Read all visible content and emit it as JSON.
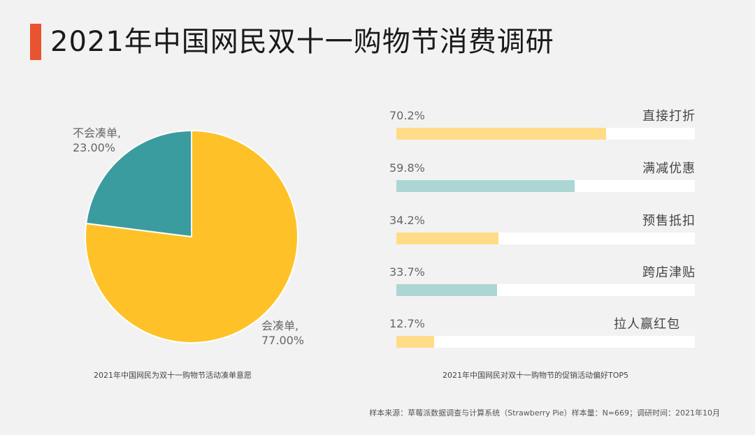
{
  "title": "2021年中国网民双十一购物节消费调研",
  "chart_data": [
    {
      "type": "pie",
      "caption": "2021年中国网民为双十一购物节活动凑单意愿",
      "slices": [
        {
          "label": "会凑单,",
          "value": 77.0,
          "value_text": "77.00%",
          "color": "#fec228"
        },
        {
          "label": "不会凑单,",
          "value": 23.0,
          "value_text": "23.00%",
          "color": "#3a9c9f"
        }
      ]
    },
    {
      "type": "bar",
      "caption": "2021年中国网民对双十一购物节的促销活动偏好TOP5",
      "xlim": [
        0,
        100
      ],
      "categories": [
        "直接打折",
        "满减优惠",
        "预售抵扣",
        "跨店津贴",
        "拉人赢红包"
      ],
      "values": [
        70.2,
        59.8,
        34.2,
        33.7,
        12.7
      ],
      "value_texts": [
        "70.2%",
        "59.8%",
        "34.2%",
        "33.7%",
        "12.7%"
      ],
      "colors": [
        "#ffdc87",
        "#acd6d4",
        "#ffdc87",
        "#acd6d4",
        "#ffdc87"
      ]
    }
  ],
  "source": "样本来源：草莓派数据调查与计算系统（Strawberry Pie）样本量：N=669；调研时间：2021年10月"
}
